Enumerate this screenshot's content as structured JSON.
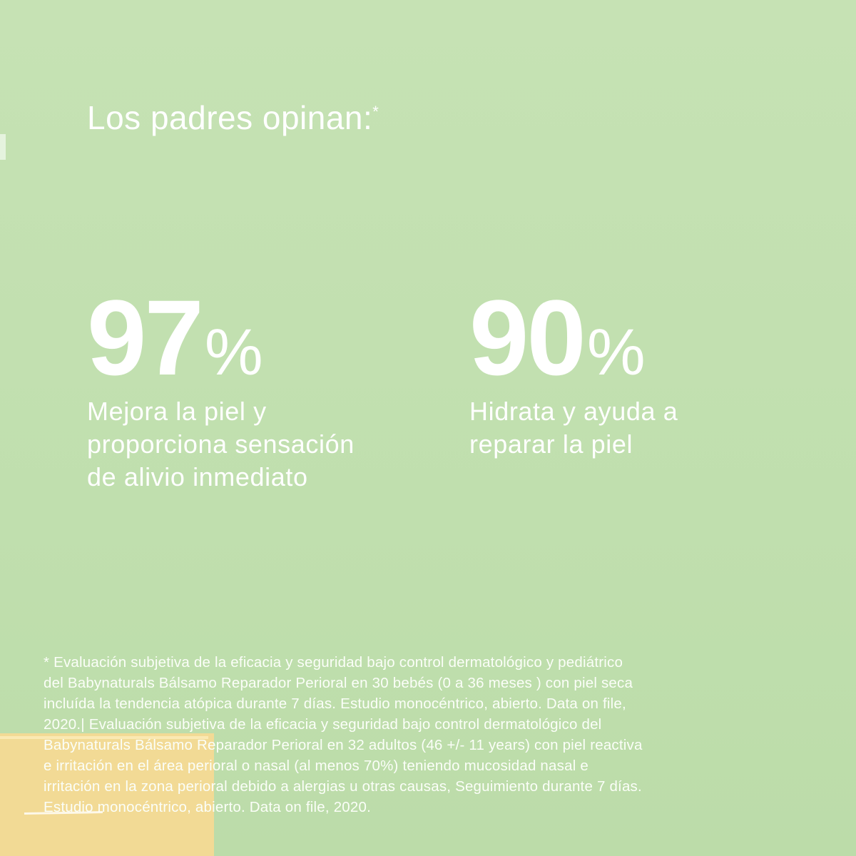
{
  "heading": {
    "text": "Los padres opinan:",
    "marker": "*"
  },
  "stats": [
    {
      "value": "97",
      "unit": "%",
      "description_lines": [
        "Mejora la piel y",
        "proporciona sensación",
        "de alivio inmediato"
      ]
    },
    {
      "value": "90",
      "unit": "%",
      "description_lines": [
        "Hidrata y ayuda a",
        "reparar la piel"
      ]
    }
  ],
  "footnote_lines": [
    "* Evaluación subjetiva de la eficacia y seguridad bajo control dermatológico y pediátrico",
    "del Babynaturals Bálsamo Reparador Perioral en 30 bebés (0 a 36 meses ) con piel seca",
    "incluída la tendencia atópica durante 7 días. Estudio monocéntrico, abierto. Data on file,",
    "2020.| Evaluación subjetiva de la eficacia y seguridad bajo control dermatológico del",
    "Babynaturals Bálsamo Reparador Perioral en 32 adultos (46 +/- 11 years) con piel reactiva",
    "e irritación en el área perioral o nasal (al menos 70%) teniendo mucosidad nasal e",
    "irritación en la zona perioral debido a alergias u otras causas, Seguimiento durante 7 días.",
    "Estudio monocéntrico, abierto. Data on file, 2020."
  ],
  "colors": {
    "background": "#c3e1b0",
    "accent_block": "#f4d994",
    "text": "#ffffff"
  }
}
